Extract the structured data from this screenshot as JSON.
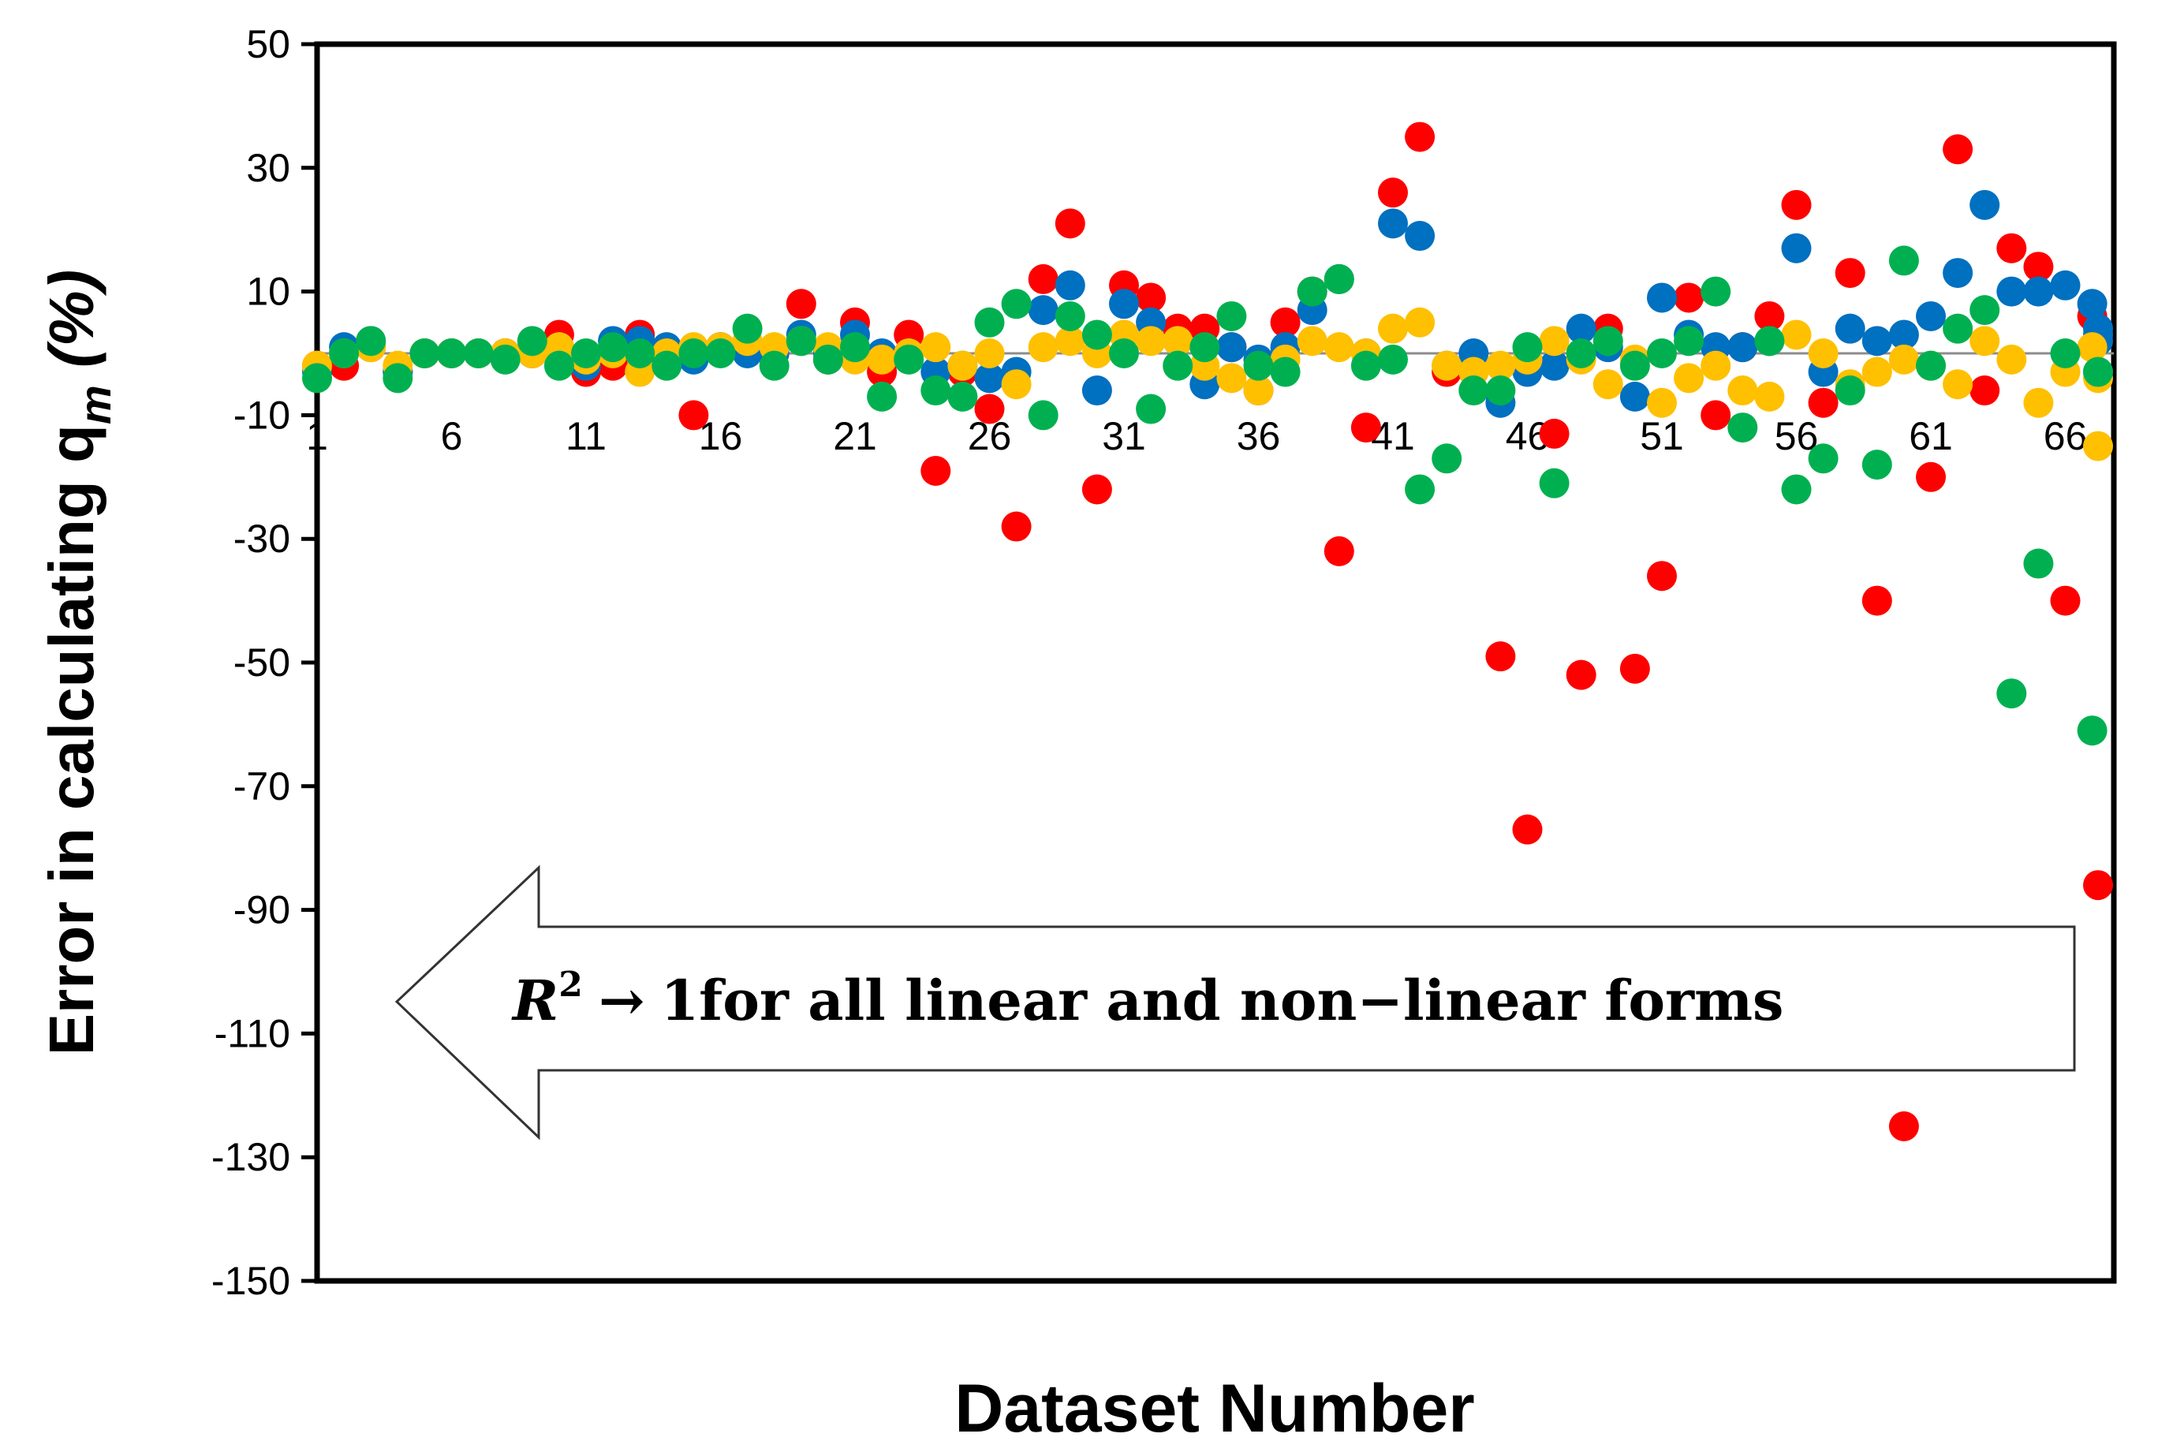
{
  "chart_data": {
    "type": "scatter",
    "title": "",
    "xlabel": "Dataset Number",
    "ylabel": "Error in calculating q",
    "ylabel_subscript": "m",
    "ylabel_suffix": " (%)",
    "xlim": [
      1,
      70
    ],
    "ylim": [
      -150,
      50
    ],
    "yticks": [
      50,
      30,
      10,
      -10,
      -30,
      -50,
      -70,
      -90,
      -110,
      -130,
      -150
    ],
    "xticks": [
      1,
      6,
      11,
      16,
      21,
      26,
      31,
      36,
      41,
      46,
      51,
      56,
      61,
      66
    ],
    "x_axis_crosses_at": 0,
    "grid": false,
    "legend": "none",
    "annotation": {
      "r_symbol": "R",
      "superscript": "2",
      "arrow": "→",
      "text": "1for all linear and non−linear forms"
    },
    "series": [
      {
        "color": "#ff0000",
        "points": [
          [
            1,
            -2
          ],
          [
            2,
            -2
          ],
          [
            3,
            1
          ],
          [
            4,
            -3
          ],
          [
            5,
            0
          ],
          [
            6,
            0
          ],
          [
            7,
            0
          ],
          [
            8,
            0
          ],
          [
            9,
            0
          ],
          [
            10,
            3
          ],
          [
            11,
            -3
          ],
          [
            12,
            -2
          ],
          [
            13,
            3
          ],
          [
            14,
            -1
          ],
          [
            15,
            -10
          ],
          [
            16,
            1
          ],
          [
            17,
            1
          ],
          [
            18,
            0
          ],
          [
            19,
            8
          ],
          [
            20,
            -1
          ],
          [
            21,
            5
          ],
          [
            22,
            -3
          ],
          [
            23,
            3
          ],
          [
            24,
            -19
          ],
          [
            25,
            -3
          ],
          [
            26,
            -9
          ],
          [
            27,
            -28
          ],
          [
            28,
            12
          ],
          [
            29,
            21
          ],
          [
            30,
            -22
          ],
          [
            31,
            11
          ],
          [
            32,
            9
          ],
          [
            33,
            4
          ],
          [
            34,
            4
          ],
          [
            35,
            1
          ],
          [
            36,
            -6
          ],
          [
            37,
            5
          ],
          [
            38,
            10
          ],
          [
            39,
            -32
          ],
          [
            40,
            -12
          ],
          [
            41,
            26
          ],
          [
            42,
            35
          ],
          [
            43,
            -3
          ],
          [
            44,
            -3
          ],
          [
            45,
            -49
          ],
          [
            46,
            -77
          ],
          [
            47,
            -13
          ],
          [
            48,
            -52
          ],
          [
            49,
            4
          ],
          [
            50,
            -51
          ],
          [
            51,
            -36
          ],
          [
            52,
            9
          ],
          [
            53,
            -10
          ],
          [
            54,
            1
          ],
          [
            55,
            6
          ],
          [
            56,
            24
          ],
          [
            57,
            -8
          ],
          [
            58,
            13
          ],
          [
            59,
            -40
          ],
          [
            60,
            -125
          ],
          [
            61,
            -20
          ],
          [
            62,
            33
          ],
          [
            63,
            -6
          ],
          [
            64,
            17
          ],
          [
            65,
            14
          ],
          [
            66,
            -40
          ],
          [
            67,
            6
          ],
          [
            68,
            -86
          ]
        ]
      },
      {
        "color": "#0070c0",
        "points": [
          [
            1,
            -3
          ],
          [
            2,
            1
          ],
          [
            3,
            2
          ],
          [
            4,
            -3
          ],
          [
            5,
            0
          ],
          [
            6,
            0
          ],
          [
            7,
            0
          ],
          [
            8,
            0
          ],
          [
            9,
            0
          ],
          [
            10,
            1
          ],
          [
            11,
            -2
          ],
          [
            12,
            2
          ],
          [
            13,
            2
          ],
          [
            14,
            1
          ],
          [
            15,
            -1
          ],
          [
            16,
            1
          ],
          [
            17,
            0
          ],
          [
            18,
            0
          ],
          [
            19,
            3
          ],
          [
            20,
            0
          ],
          [
            21,
            3
          ],
          [
            22,
            0
          ],
          [
            23,
            0
          ],
          [
            24,
            -3
          ],
          [
            25,
            -2
          ],
          [
            26,
            -4
          ],
          [
            27,
            -3
          ],
          [
            28,
            7
          ],
          [
            29,
            11
          ],
          [
            30,
            -6
          ],
          [
            31,
            8
          ],
          [
            32,
            5
          ],
          [
            33,
            2
          ],
          [
            34,
            -5
          ],
          [
            35,
            1
          ],
          [
            36,
            -1
          ],
          [
            37,
            1
          ],
          [
            38,
            7
          ],
          [
            39,
            12
          ],
          [
            40,
            0
          ],
          [
            41,
            21
          ],
          [
            42,
            19
          ],
          [
            43,
            -2
          ],
          [
            44,
            0
          ],
          [
            45,
            -8
          ],
          [
            46,
            -3
          ],
          [
            47,
            -2
          ],
          [
            48,
            4
          ],
          [
            49,
            1
          ],
          [
            50,
            -7
          ],
          [
            51,
            9
          ],
          [
            52,
            3
          ],
          [
            53,
            1
          ],
          [
            54,
            1
          ],
          [
            55,
            2
          ],
          [
            56,
            17
          ],
          [
            57,
            -3
          ],
          [
            58,
            4
          ],
          [
            59,
            2
          ],
          [
            60,
            3
          ],
          [
            61,
            6
          ],
          [
            62,
            13
          ],
          [
            63,
            24
          ],
          [
            64,
            10
          ],
          [
            65,
            10
          ],
          [
            66,
            11
          ],
          [
            67,
            8
          ],
          [
            68,
            -3
          ],
          [
            69,
            3
          ],
          [
            70,
            4
          ],
          [
            71,
            2
          ]
        ]
      },
      {
        "color": "#ffc000",
        "points": [
          [
            1,
            -2
          ],
          [
            2,
            0
          ],
          [
            3,
            1
          ],
          [
            4,
            -2
          ],
          [
            5,
            0
          ],
          [
            6,
            0
          ],
          [
            7,
            0
          ],
          [
            8,
            0
          ],
          [
            9,
            0
          ],
          [
            10,
            1
          ],
          [
            11,
            -1
          ],
          [
            12,
            0
          ],
          [
            13,
            -3
          ],
          [
            14,
            0
          ],
          [
            15,
            1
          ],
          [
            16,
            1
          ],
          [
            17,
            2
          ],
          [
            18,
            1
          ],
          [
            19,
            2
          ],
          [
            20,
            1
          ],
          [
            21,
            -1
          ],
          [
            22,
            -1
          ],
          [
            23,
            0
          ],
          [
            24,
            1
          ],
          [
            25,
            -2
          ],
          [
            26,
            0
          ],
          [
            27,
            -5
          ],
          [
            28,
            1
          ],
          [
            29,
            2
          ],
          [
            30,
            0
          ],
          [
            31,
            3
          ],
          [
            32,
            2
          ],
          [
            33,
            2
          ],
          [
            34,
            -2
          ],
          [
            35,
            -4
          ],
          [
            36,
            -6
          ],
          [
            37,
            -1
          ],
          [
            38,
            2
          ],
          [
            39,
            1
          ],
          [
            40,
            0
          ],
          [
            41,
            4
          ],
          [
            42,
            5
          ],
          [
            43,
            -2
          ],
          [
            44,
            -3
          ],
          [
            45,
            -2
          ],
          [
            46,
            -1
          ],
          [
            47,
            2
          ],
          [
            48,
            -1
          ],
          [
            49,
            -5
          ],
          [
            50,
            -1
          ],
          [
            51,
            -8
          ],
          [
            52,
            -4
          ],
          [
            53,
            -2
          ],
          [
            54,
            -6
          ],
          [
            55,
            -7
          ],
          [
            56,
            3
          ],
          [
            57,
            0
          ],
          [
            58,
            -5
          ],
          [
            59,
            -3
          ],
          [
            60,
            -1
          ],
          [
            61,
            -2
          ],
          [
            62,
            -5
          ],
          [
            63,
            2
          ],
          [
            64,
            -1
          ],
          [
            65,
            -8
          ],
          [
            66,
            -3
          ],
          [
            67,
            1
          ],
          [
            68,
            -15
          ],
          [
            69,
            -4
          ]
        ]
      },
      {
        "color": "#00b050",
        "points": [
          [
            1,
            -4
          ],
          [
            2,
            0
          ],
          [
            3,
            2
          ],
          [
            4,
            -4
          ],
          [
            5,
            0
          ],
          [
            6,
            0
          ],
          [
            7,
            0
          ],
          [
            8,
            -1
          ],
          [
            9,
            2
          ],
          [
            10,
            -2
          ],
          [
            11,
            0
          ],
          [
            12,
            1
          ],
          [
            13,
            0
          ],
          [
            14,
            -2
          ],
          [
            15,
            0
          ],
          [
            16,
            0
          ],
          [
            17,
            4
          ],
          [
            18,
            -2
          ],
          [
            19,
            2
          ],
          [
            20,
            -1
          ],
          [
            21,
            1
          ],
          [
            22,
            -7
          ],
          [
            23,
            -1
          ],
          [
            24,
            -6
          ],
          [
            25,
            -7
          ],
          [
            26,
            5
          ],
          [
            27,
            8
          ],
          [
            28,
            -10
          ],
          [
            29,
            6
          ],
          [
            30,
            3
          ],
          [
            31,
            0
          ],
          [
            32,
            -9
          ],
          [
            33,
            -2
          ],
          [
            34,
            1
          ],
          [
            35,
            6
          ],
          [
            36,
            -2
          ],
          [
            37,
            -3
          ],
          [
            38,
            10
          ],
          [
            39,
            12
          ],
          [
            40,
            -2
          ],
          [
            41,
            -1
          ],
          [
            42,
            -22
          ],
          [
            43,
            -17
          ],
          [
            44,
            -6
          ],
          [
            45,
            -6
          ],
          [
            46,
            1
          ],
          [
            47,
            -21
          ],
          [
            48,
            0
          ],
          [
            49,
            2
          ],
          [
            50,
            -2
          ],
          [
            51,
            0
          ],
          [
            52,
            2
          ],
          [
            53,
            10
          ],
          [
            54,
            -12
          ],
          [
            55,
            2
          ],
          [
            56,
            -22
          ],
          [
            57,
            -17
          ],
          [
            58,
            -6
          ],
          [
            59,
            -18
          ],
          [
            60,
            15
          ],
          [
            61,
            -2
          ],
          [
            62,
            4
          ],
          [
            63,
            7
          ],
          [
            64,
            -55
          ],
          [
            65,
            -34
          ],
          [
            66,
            0
          ],
          [
            67,
            -61
          ],
          [
            68,
            -3
          ]
        ]
      }
    ]
  }
}
